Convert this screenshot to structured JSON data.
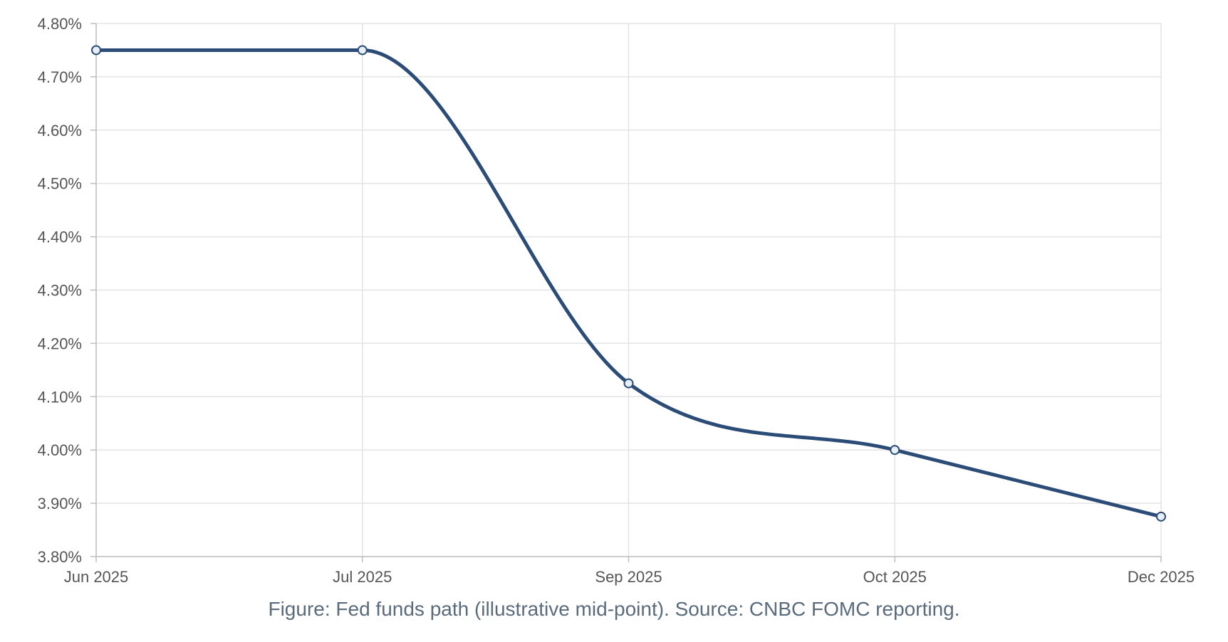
{
  "caption": "Figure: Fed funds path (illustrative mid-point). Source: CNBC FOMC reporting.",
  "colors": {
    "line": "#2b4c76",
    "grid": "#e3e3e3",
    "axis": "#bfbfbf"
  },
  "chart_data": {
    "type": "line",
    "categories": [
      "Jun 2025",
      "Jul 2025",
      "Sep 2025",
      "Oct 2025",
      "Dec 2025"
    ],
    "series": [
      {
        "values": [
          4.75,
          4.75,
          4.125,
          4.0,
          3.875
        ]
      }
    ],
    "ylim": [
      3.8,
      4.8
    ],
    "yticks": [
      "3.80%",
      "3.90%",
      "4.00%",
      "4.10%",
      "4.20%",
      "4.30%",
      "4.40%",
      "4.50%",
      "4.60%",
      "4.70%",
      "4.80%"
    ],
    "grid": true,
    "smooth": true,
    "xlabel": "",
    "ylabel": ""
  }
}
